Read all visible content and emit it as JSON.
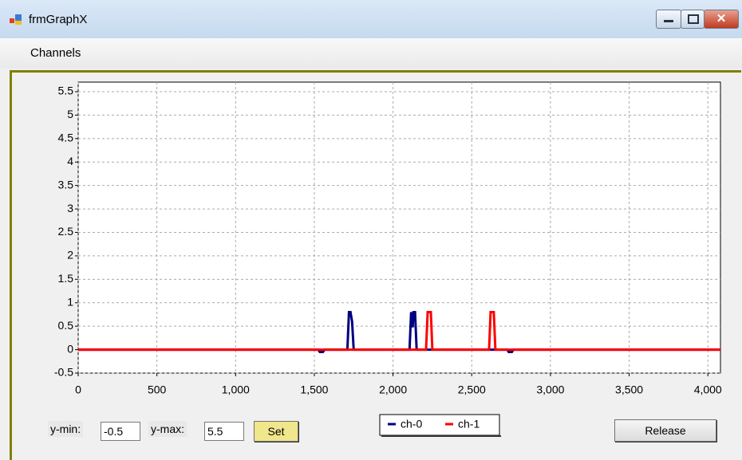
{
  "window": {
    "title": "frmGraphX"
  },
  "menu": [
    "Channels"
  ],
  "chart_data": {
    "type": "line",
    "xlim": [
      0,
      4080
    ],
    "ylim": [
      -0.5,
      5.5
    ],
    "xticks": [
      0,
      500,
      {
        "value": 1000,
        "label": "1,000"
      },
      {
        "value": 1500,
        "label": "1,500"
      },
      {
        "value": 2000,
        "label": "2,000"
      },
      {
        "value": 2500,
        "label": "2,500"
      },
      {
        "value": 3000,
        "label": "3,000"
      },
      {
        "value": 3500,
        "label": "3,500"
      },
      {
        "value": 4000,
        "label": "4,000"
      }
    ],
    "yticks": [
      -0.5,
      0,
      0.5,
      1,
      1.5,
      2,
      2.5,
      3,
      3.5,
      4,
      4.5,
      5,
      5.5
    ],
    "grid": true,
    "series": [
      {
        "name": "ch-0",
        "color": "#000080",
        "x": [
          0,
          1525,
          1535,
          1555,
          1565,
          1710,
          1720,
          1730,
          1740,
          1750,
          2105,
          2115,
          2120,
          2125,
          2130,
          2140,
          2150,
          2725,
          2735,
          2755,
          2765,
          4080
        ],
        "values": [
          0,
          0,
          -0.05,
          -0.05,
          0,
          0,
          0.8,
          0.8,
          0.6,
          0,
          0,
          0.8,
          0.5,
          0.5,
          0.8,
          0.8,
          0,
          0,
          -0.05,
          -0.05,
          0,
          0
        ]
      },
      {
        "name": "ch-1",
        "color": "#ff0000",
        "x": [
          0,
          2210,
          2220,
          2240,
          2250,
          2610,
          2620,
          2640,
          2650,
          4080
        ],
        "values": [
          0,
          0,
          0.8,
          0.8,
          0,
          0,
          0.8,
          0.8,
          0,
          0
        ]
      }
    ]
  },
  "controls": {
    "ymin_label": "y-min:",
    "ymin_value": "-0.5",
    "ymax_label": "y-max:",
    "ymax_value": "5.5",
    "set_button": "Set",
    "release_button": "Release"
  }
}
